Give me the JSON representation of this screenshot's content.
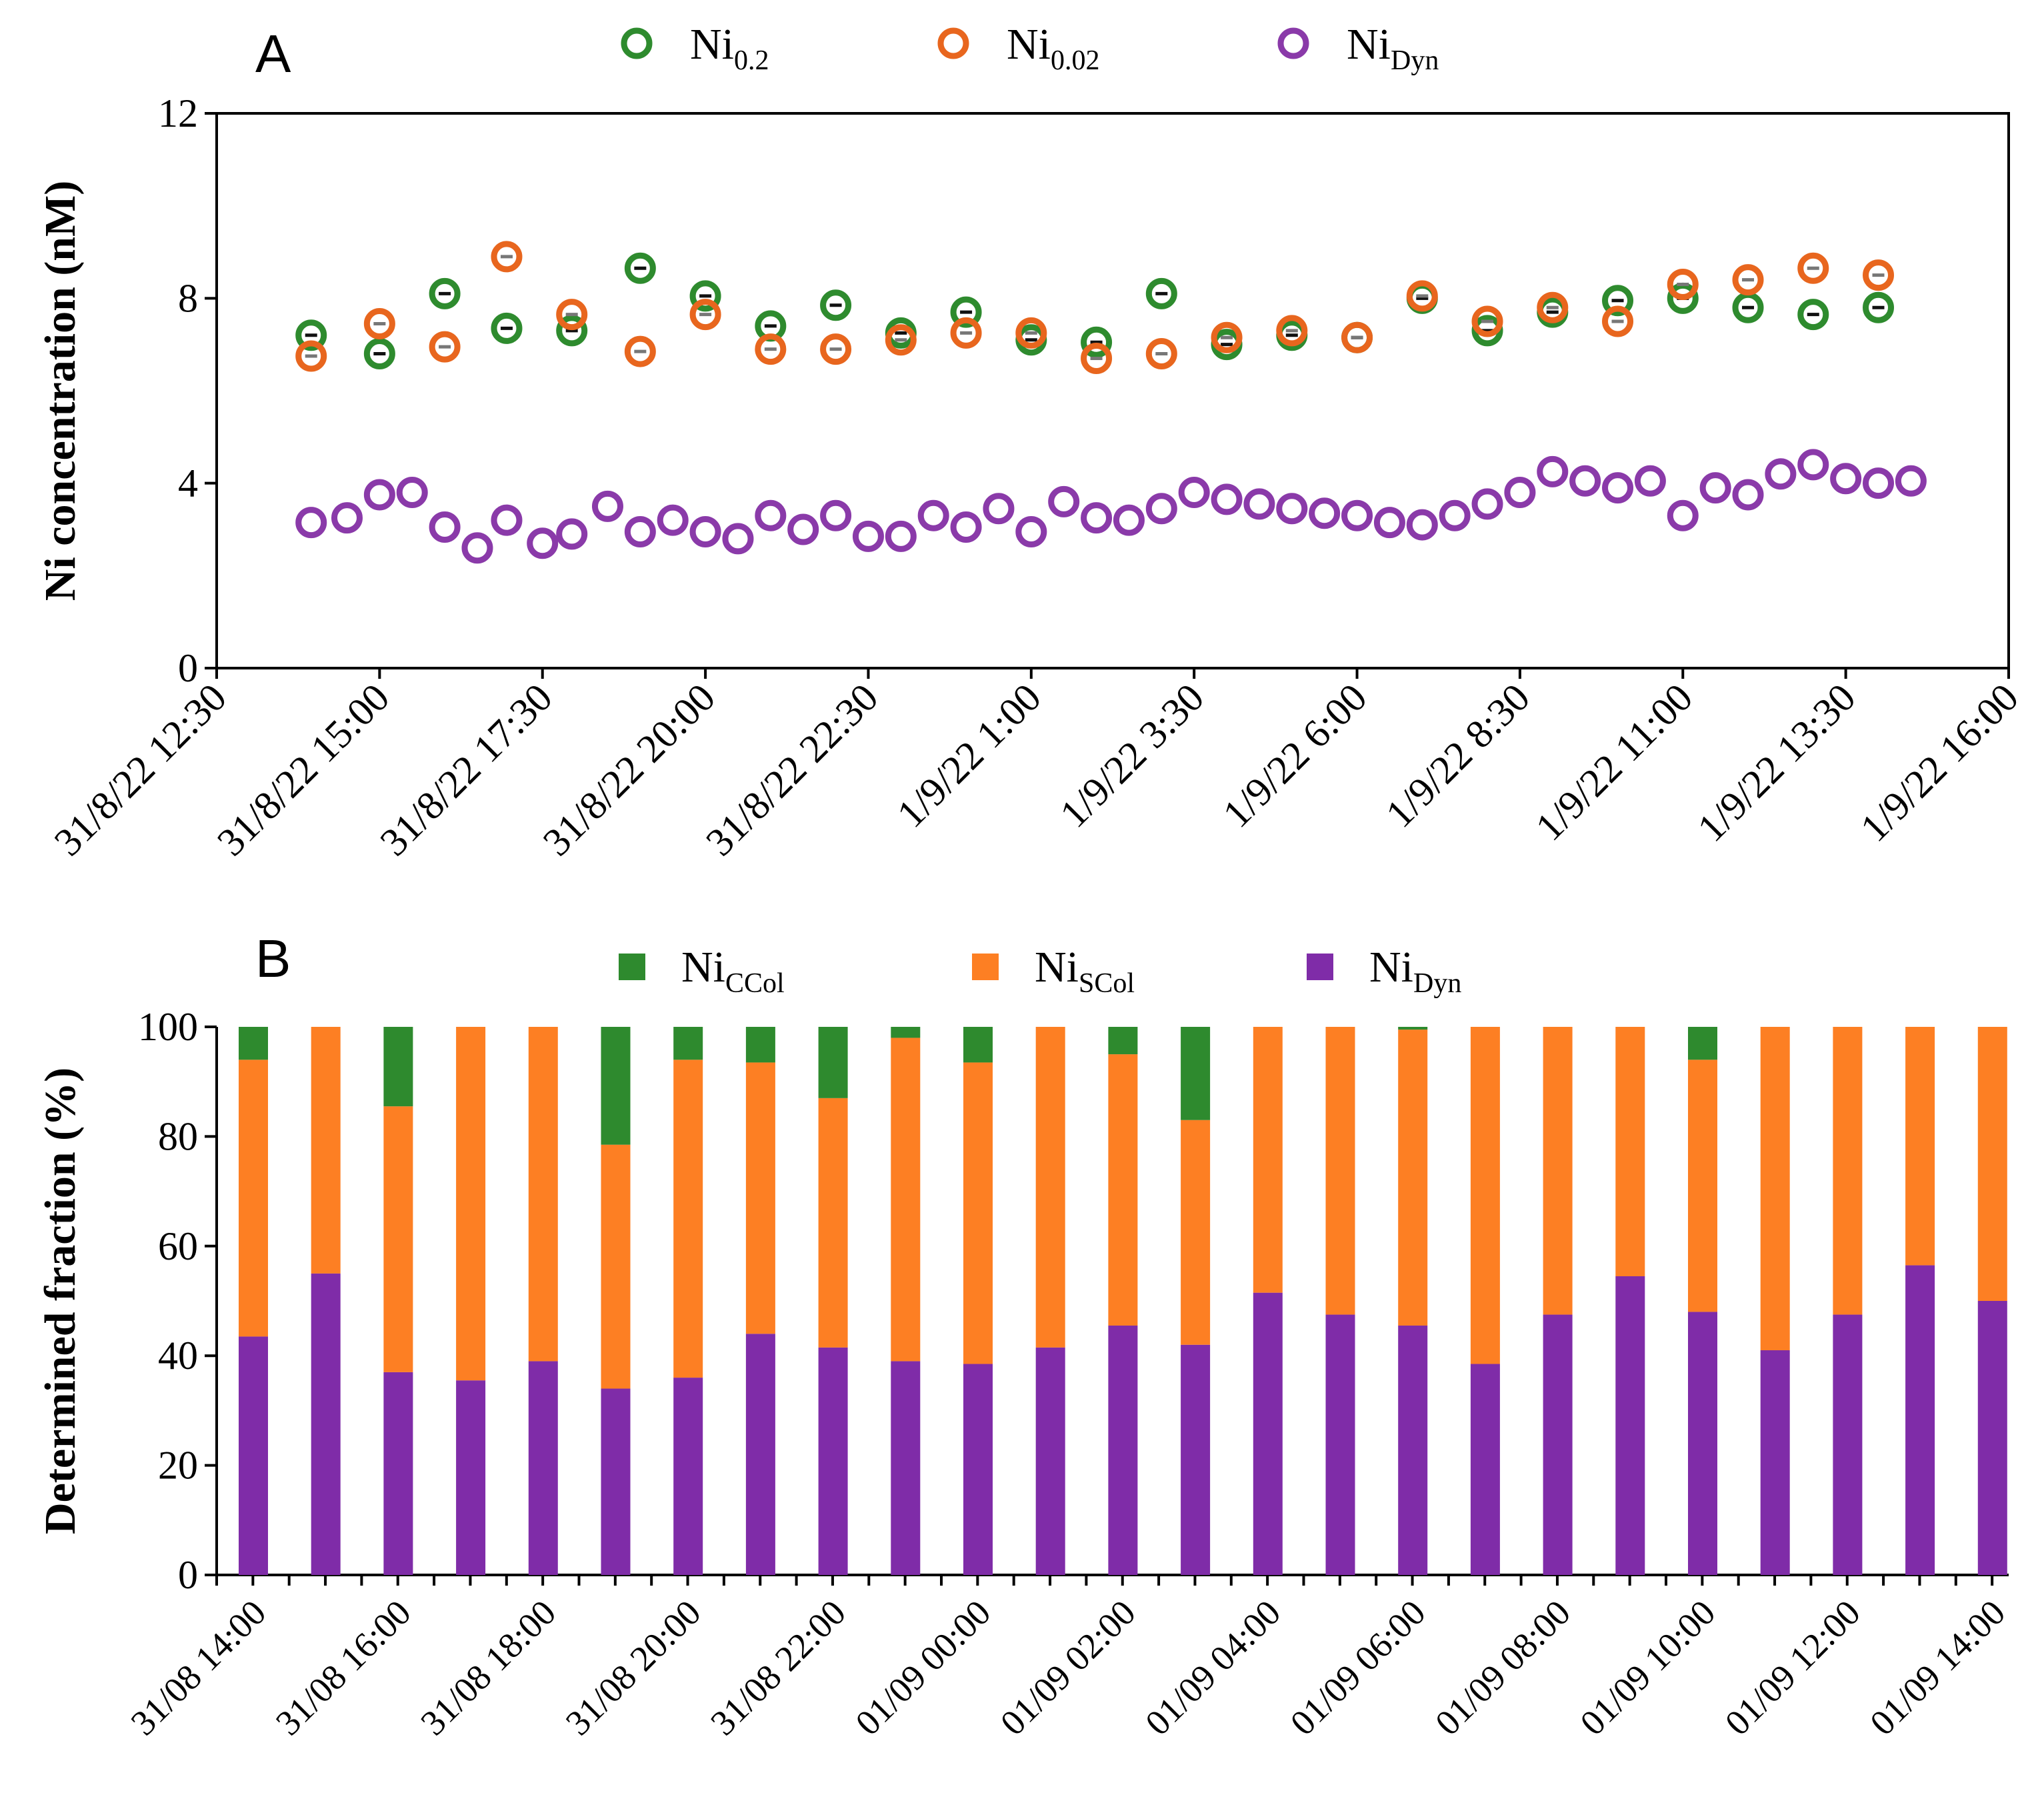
{
  "chart_data": [
    {
      "type": "scatter",
      "panel": "A",
      "ylabel": "Ni concentration (nM)",
      "ylim": [
        0,
        12
      ],
      "yticks": [
        0,
        4,
        8,
        12
      ],
      "xlim_hours": [
        0,
        27.5
      ],
      "x_ticks": [
        {
          "label": "31/8/22 12:30",
          "h": 0
        },
        {
          "label": "31/8/22 15:00",
          "h": 2.5
        },
        {
          "label": "31/8/22 17:30",
          "h": 5
        },
        {
          "label": "31/8/22 20:00",
          "h": 7.5
        },
        {
          "label": "31/8/22 22:30",
          "h": 10
        },
        {
          "label": "1/9/22 1:00",
          "h": 12.5
        },
        {
          "label": "1/9/22 3:30",
          "h": 15
        },
        {
          "label": "1/9/22 6:00",
          "h": 17.5
        },
        {
          "label": "1/9/22 8:30",
          "h": 20
        },
        {
          "label": "1/9/22 11:00",
          "h": 22.5
        },
        {
          "label": "1/9/22 13:30",
          "h": 25
        },
        {
          "label": "1/9/22 16:00",
          "h": 27.5
        }
      ],
      "series": [
        {
          "name": "Ni",
          "sub": "0.2",
          "color": "#2e8b2e",
          "points": [
            [
              1.45,
              7.2
            ],
            [
              2.5,
              6.8
            ],
            [
              3.5,
              8.1
            ],
            [
              4.45,
              7.35
            ],
            [
              5.45,
              7.3
            ],
            [
              6.5,
              8.65
            ],
            [
              7.5,
              8.05
            ],
            [
              8.5,
              7.4
            ],
            [
              9.5,
              7.85
            ],
            [
              10.5,
              7.25
            ],
            [
              11.5,
              7.7
            ],
            [
              12.5,
              7.1
            ],
            [
              13.5,
              7.05
            ],
            [
              14.5,
              8.1
            ],
            [
              15.5,
              7.0
            ],
            [
              16.5,
              7.2
            ],
            [
              17.5,
              7.15
            ],
            [
              18.5,
              8.0
            ],
            [
              19.5,
              7.3
            ],
            [
              20.5,
              7.7
            ],
            [
              21.5,
              7.95
            ],
            [
              22.5,
              8.0
            ],
            [
              23.5,
              7.8
            ],
            [
              24.5,
              7.65
            ],
            [
              25.5,
              7.8
            ]
          ]
        },
        {
          "name": "Ni",
          "sub": "0.02",
          "color": "#e8661e",
          "points": [
            [
              1.45,
              6.75
            ],
            [
              2.5,
              7.45
            ],
            [
              3.5,
              6.95
            ],
            [
              4.45,
              8.9
            ],
            [
              5.45,
              7.65
            ],
            [
              6.5,
              6.85
            ],
            [
              7.5,
              7.65
            ],
            [
              8.5,
              6.9
            ],
            [
              9.5,
              6.9
            ],
            [
              10.5,
              7.1
            ],
            [
              11.5,
              7.25
            ],
            [
              12.5,
              7.25
            ],
            [
              13.5,
              6.7
            ],
            [
              14.5,
              6.8
            ],
            [
              15.5,
              7.15
            ],
            [
              16.5,
              7.3
            ],
            [
              17.5,
              7.15
            ],
            [
              18.5,
              8.05
            ],
            [
              19.5,
              7.5
            ],
            [
              20.5,
              7.8
            ],
            [
              21.5,
              7.5
            ],
            [
              22.5,
              8.3
            ],
            [
              23.5,
              8.4
            ],
            [
              24.5,
              8.65
            ],
            [
              25.5,
              8.5
            ]
          ]
        },
        {
          "name": "Ni",
          "sub": "Dyn",
          "color": "#8a3aa9",
          "points": [
            [
              1.45,
              3.15
            ],
            [
              2.0,
              3.25
            ],
            [
              2.5,
              3.75
            ],
            [
              3.0,
              3.8
            ],
            [
              3.5,
              3.05
            ],
            [
              4.0,
              2.6
            ],
            [
              4.45,
              3.2
            ],
            [
              5.0,
              2.7
            ],
            [
              5.45,
              2.9
            ],
            [
              6.0,
              3.5
            ],
            [
              6.5,
              2.95
            ],
            [
              7.0,
              3.2
            ],
            [
              7.5,
              2.95
            ],
            [
              8.0,
              2.8
            ],
            [
              8.5,
              3.3
            ],
            [
              9.0,
              3.0
            ],
            [
              9.5,
              3.3
            ],
            [
              10.0,
              2.85
            ],
            [
              10.5,
              2.85
            ],
            [
              11.0,
              3.3
            ],
            [
              11.5,
              3.05
            ],
            [
              12.0,
              3.45
            ],
            [
              12.5,
              2.95
            ],
            [
              13.0,
              3.6
            ],
            [
              13.5,
              3.25
            ],
            [
              14.0,
              3.2
            ],
            [
              14.5,
              3.45
            ],
            [
              15.0,
              3.8
            ],
            [
              15.5,
              3.65
            ],
            [
              16.0,
              3.55
            ],
            [
              16.5,
              3.45
            ],
            [
              17.0,
              3.35
            ],
            [
              17.5,
              3.3
            ],
            [
              18.0,
              3.15
            ],
            [
              18.5,
              3.1
            ],
            [
              19.0,
              3.3
            ],
            [
              19.5,
              3.55
            ],
            [
              20.0,
              3.8
            ],
            [
              20.5,
              4.25
            ],
            [
              21.0,
              4.05
            ],
            [
              21.5,
              3.9
            ],
            [
              22.0,
              4.05
            ],
            [
              22.5,
              3.3
            ],
            [
              23.0,
              3.9
            ],
            [
              23.5,
              3.75
            ],
            [
              24.0,
              4.2
            ],
            [
              24.5,
              4.4
            ],
            [
              25.0,
              4.1
            ],
            [
              25.5,
              4.0
            ],
            [
              26.0,
              4.05
            ]
          ]
        }
      ]
    },
    {
      "type": "bar",
      "stacked": true,
      "panel": "B",
      "ylabel": "Determined fraction (%)",
      "ylim": [
        0,
        100
      ],
      "yticks": [
        0,
        20,
        40,
        60,
        80,
        100
      ],
      "x_tick_labels": [
        "31/08 14:00",
        "31/08 16:00",
        "31/08 18:00",
        "31/08 20:00",
        "31/08 22:00",
        "01/09 00:00",
        "01/09 02:00",
        "01/09 04:00",
        "01/09 06:00",
        "01/09 08:00",
        "01/09 10:00",
        "01/09 12:00",
        "01/09 14:00"
      ],
      "series": [
        {
          "name": "Ni",
          "sub": "Dyn",
          "color": "#7f2ca8",
          "values": [
            43.5,
            55,
            37,
            35.5,
            39,
            34,
            36,
            44,
            41.5,
            39,
            38.5,
            41.5,
            45.5,
            42,
            51.5,
            47.5,
            45.5,
            38.5,
            47.5,
            54.5,
            48,
            41,
            47.5,
            56.5,
            50
          ]
        },
        {
          "name": "Ni",
          "sub": "SCol",
          "color": "#fd7f23",
          "values": [
            50.5,
            45,
            48.5,
            64.5,
            61,
            44.5,
            58,
            49.5,
            45.5,
            59,
            55,
            58.5,
            49.5,
            41,
            48.5,
            52.5,
            54,
            61.5,
            52.5,
            45.5,
            46,
            59,
            52.5,
            43.5,
            50
          ]
        },
        {
          "name": "Ni",
          "sub": "CCol",
          "color": "#2e8a2e",
          "values": [
            6,
            0,
            14.5,
            0,
            0,
            21.5,
            6,
            6.5,
            13,
            2,
            6.5,
            0,
            5,
            17,
            0,
            0,
            0.5,
            0,
            0,
            0,
            6,
            0,
            0,
            0,
            0
          ]
        }
      ]
    }
  ]
}
